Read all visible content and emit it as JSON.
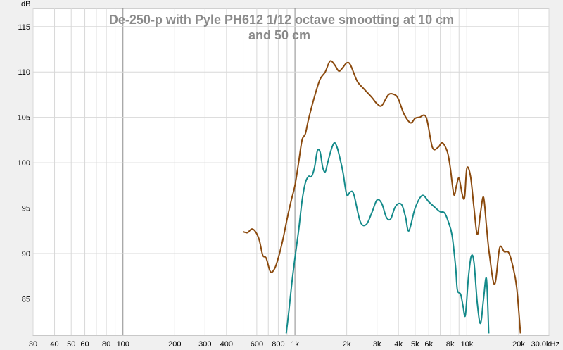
{
  "chart_data": {
    "type": "line",
    "title_lines": [
      "De-250-p  with Pyle PH612  1/12 octave smootting at 10 cm",
      "and 50 cm"
    ],
    "ylabel": "dB",
    "xscale": "log",
    "xlim": [
      30,
      30000
    ],
    "ylim": [
      81,
      117
    ],
    "grid": true,
    "y_ticks": [
      85,
      90,
      95,
      100,
      105,
      110,
      115
    ],
    "x_ticks": [
      {
        "value": 30,
        "label": "30"
      },
      {
        "value": 40,
        "label": "40"
      },
      {
        "value": 50,
        "label": "50"
      },
      {
        "value": 60,
        "label": "60"
      },
      {
        "value": 80,
        "label": "80"
      },
      {
        "value": 100,
        "label": "100"
      },
      {
        "value": 200,
        "label": "200"
      },
      {
        "value": 300,
        "label": "300"
      },
      {
        "value": 400,
        "label": "400"
      },
      {
        "value": 600,
        "label": "600"
      },
      {
        "value": 800,
        "label": "800"
      },
      {
        "value": 1000,
        "label": "1k"
      },
      {
        "value": 2000,
        "label": "2k"
      },
      {
        "value": 3000,
        "label": "3k"
      },
      {
        "value": 4000,
        "label": "4k"
      },
      {
        "value": 5000,
        "label": "5k"
      },
      {
        "value": 6000,
        "label": "6k"
      },
      {
        "value": 8000,
        "label": "8k"
      },
      {
        "value": 10000,
        "label": "10k"
      },
      {
        "value": 20000,
        "label": "20k"
      },
      {
        "value": 30000,
        "label": "30.0kHz"
      }
    ],
    "series": [
      {
        "color": "#8b4a0e",
        "x": [
          500,
          530,
          560,
          590,
          620,
          650,
          680,
          720,
          760,
          800,
          850,
          900,
          950,
          1000,
          1050,
          1100,
          1150,
          1200,
          1300,
          1400,
          1500,
          1600,
          1700,
          1800,
          1900,
          2000,
          2100,
          2300,
          2500,
          2800,
          3000,
          3200,
          3500,
          3800,
          4000,
          4300,
          4700,
          5000,
          5300,
          5800,
          6300,
          6800,
          7200,
          7700,
          8000,
          8400,
          8700,
          9000,
          9400,
          9700,
          10000,
          10500,
          11000,
          11500,
          12000,
          12500,
          13000,
          13500,
          14500,
          15500,
          16500,
          17500,
          18500,
          19500,
          20500
        ],
        "y": [
          92.4,
          92.3,
          92.7,
          92.4,
          91.5,
          89.8,
          89.5,
          88.0,
          88.3,
          89.5,
          91.5,
          93.8,
          95.8,
          97.5,
          100.0,
          102.5,
          103.2,
          104.8,
          107.3,
          109.2,
          110.0,
          111.2,
          110.8,
          110.1,
          110.5,
          111.0,
          110.8,
          109.0,
          108.2,
          107.2,
          106.5,
          106.3,
          107.5,
          107.5,
          107.0,
          105.4,
          104.4,
          104.9,
          105.0,
          105.0,
          101.7,
          101.7,
          102.2,
          101.2,
          99.5,
          96.5,
          97.5,
          98.3,
          96.5,
          96.2,
          99.4,
          98.5,
          95.0,
          92.1,
          94.5,
          96.2,
          93.0,
          90.0,
          86.6,
          90.6,
          90.2,
          90.1,
          88.6,
          86.2,
          81.2
        ]
      },
      {
        "color": "#148a8a",
        "x": [
          890,
          920,
          960,
          1000,
          1050,
          1100,
          1150,
          1200,
          1250,
          1300,
          1350,
          1400,
          1450,
          1500,
          1550,
          1600,
          1650,
          1700,
          1750,
          1800,
          1900,
          2000,
          2100,
          2200,
          2400,
          2600,
          2800,
          3000,
          3200,
          3400,
          3600,
          3800,
          4000,
          4200,
          4400,
          4600,
          5000,
          5500,
          6000,
          6500,
          7000,
          7400,
          7800,
          8200,
          8600,
          8800,
          9200,
          9500,
          9800,
          10200,
          10600,
          11000,
          11500,
          12000,
          12500,
          13000,
          13400
        ],
        "y": [
          81.2,
          83.5,
          86.8,
          89.5,
          92.5,
          95.8,
          97.8,
          98.5,
          98.5,
          99.5,
          101.3,
          101.2,
          99.5,
          99.0,
          100.0,
          101.0,
          101.8,
          102.2,
          101.8,
          101.0,
          99.0,
          96.5,
          96.8,
          96.5,
          93.5,
          93.2,
          94.5,
          95.9,
          95.5,
          94.0,
          93.8,
          95.0,
          95.5,
          95.3,
          94.0,
          92.5,
          95.0,
          96.4,
          95.7,
          95.1,
          94.6,
          94.5,
          93.5,
          92.0,
          88.5,
          86.0,
          85.5,
          84.2,
          83.2,
          87.3,
          89.7,
          89.0,
          84.5,
          82.3,
          85.0,
          87.2,
          81.2
        ]
      }
    ]
  }
}
